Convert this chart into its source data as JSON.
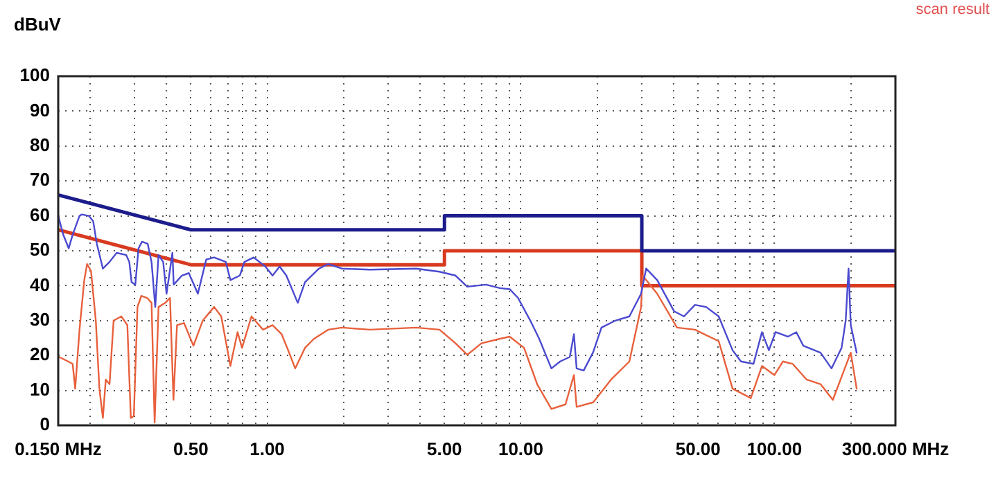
{
  "chart_data": {
    "type": "line",
    "ylabel": "dBuV",
    "annotations": [
      "scan result"
    ],
    "log": "x",
    "grid": true,
    "legend": false,
    "xlim": [
      0.15,
      300
    ],
    "ylim": [
      0,
      100
    ],
    "xticks": [
      {
        "value": 0.15,
        "label": "0.150 MHz"
      },
      {
        "value": 0.2,
        "label": null
      },
      {
        "value": 0.3,
        "label": null
      },
      {
        "value": 0.4,
        "label": null
      },
      {
        "value": 0.5,
        "label": "0.50"
      },
      {
        "value": 0.6,
        "label": null
      },
      {
        "value": 0.7,
        "label": null
      },
      {
        "value": 0.8,
        "label": null
      },
      {
        "value": 0.9,
        "label": null
      },
      {
        "value": 1,
        "label": "1.00"
      },
      {
        "value": 2,
        "label": null
      },
      {
        "value": 3,
        "label": null
      },
      {
        "value": 4,
        "label": null
      },
      {
        "value": 5,
        "label": "5.00"
      },
      {
        "value": 6,
        "label": null
      },
      {
        "value": 7,
        "label": null
      },
      {
        "value": 8,
        "label": null
      },
      {
        "value": 9,
        "label": null
      },
      {
        "value": 10,
        "label": "10.00"
      },
      {
        "value": 20,
        "label": null
      },
      {
        "value": 30,
        "label": null
      },
      {
        "value": 40,
        "label": null
      },
      {
        "value": 50,
        "label": "50.00"
      },
      {
        "value": 60,
        "label": null
      },
      {
        "value": 70,
        "label": null
      },
      {
        "value": 80,
        "label": null
      },
      {
        "value": 90,
        "label": null
      },
      {
        "value": 100,
        "label": "100.00"
      },
      {
        "value": 200,
        "label": null
      },
      {
        "value": 300,
        "label": "300.000 MHz"
      }
    ],
    "yticks": [
      0,
      10,
      20,
      30,
      40,
      50,
      60,
      70,
      80,
      90,
      100
    ],
    "series": [
      {
        "color": "#4a4ad0",
        "x": [
          0.15,
          0.157,
          0.165,
          0.171,
          0.182,
          0.186,
          0.198,
          0.206,
          0.213,
          0.225,
          0.239,
          0.255,
          0.278,
          0.286,
          0.292,
          0.302,
          0.311,
          0.321,
          0.338,
          0.35,
          0.362,
          0.373,
          0.389,
          0.401,
          0.423,
          0.428,
          0.461,
          0.491,
          0.533,
          0.575,
          0.618,
          0.687,
          0.716,
          0.78,
          0.813,
          0.885,
          0.984,
          1.05,
          1.12,
          1.19,
          1.32,
          1.41,
          1.6,
          1.74,
          1.97,
          2.54,
          3.87,
          4.78,
          5.53,
          6.15,
          7.29,
          8.27,
          9.04,
          9.75,
          10.9,
          11.8,
          13.2,
          14.3,
          15.6,
          16.2,
          16.6,
          17.7,
          19.3,
          20.8,
          23.6,
          26.8,
          29.8,
          31.2,
          34.5,
          40.2,
          44,
          48.6,
          53.8,
          60.3,
          68.4,
          73.8,
          82.7,
          89.3,
          95.1,
          101,
          113,
          122,
          130,
          152,
          168,
          184,
          191,
          196,
          200,
          211
        ],
        "values": [
          60,
          54.6,
          50.7,
          54.6,
          60,
          60.4,
          60,
          58.5,
          52,
          44.9,
          46.8,
          49.4,
          48.8,
          46.8,
          41,
          40.3,
          50.7,
          52.6,
          52,
          46.8,
          33.9,
          48.8,
          46.8,
          37.7,
          49.4,
          40.3,
          42.9,
          43.6,
          37.7,
          47.5,
          48.1,
          46.8,
          41.6,
          42.9,
          46.8,
          48.1,
          45.5,
          42.9,
          45.5,
          42.9,
          35.1,
          41,
          44.9,
          46.2,
          44.9,
          44.6,
          44.9,
          44,
          42.9,
          39.7,
          40.3,
          39.3,
          39,
          36.5,
          30,
          24.9,
          16.3,
          18.3,
          19.6,
          26.1,
          16.3,
          15.7,
          21,
          28,
          30,
          31.2,
          37.7,
          44.9,
          41.6,
          32.7,
          31.2,
          34.5,
          33.9,
          31.2,
          21.5,
          18.3,
          17.6,
          26.7,
          21.5,
          26.7,
          25.4,
          26.7,
          22.8,
          20.8,
          16.3,
          22.2,
          30,
          44.9,
          28.7,
          20.8
        ]
      },
      {
        "color": "#e8603c",
        "x": [
          0.151,
          0.164,
          0.171,
          0.175,
          0.182,
          0.19,
          0.195,
          0.202,
          0.211,
          0.218,
          0.225,
          0.231,
          0.239,
          0.248,
          0.266,
          0.281,
          0.29,
          0.298,
          0.308,
          0.319,
          0.336,
          0.35,
          0.36,
          0.373,
          0.397,
          0.414,
          0.427,
          0.441,
          0.47,
          0.512,
          0.557,
          0.618,
          0.659,
          0.716,
          0.764,
          0.796,
          0.867,
          0.963,
          1.05,
          1.14,
          1.21,
          1.29,
          1.41,
          1.53,
          1.74,
          1.97,
          2.54,
          3.87,
          4.78,
          5.53,
          6.15,
          6.99,
          8.27,
          9.04,
          10.3,
          11.6,
          13.2,
          15,
          16.2,
          16.6,
          19.3,
          22.7,
          26.8,
          29.8,
          30.2,
          34.5,
          41.3,
          48.6,
          60.3,
          68.4,
          80.7,
          89.3,
          100,
          108,
          118,
          134,
          152,
          170,
          188,
          200,
          211
        ],
        "values": [
          19.6,
          18.3,
          17.6,
          10.5,
          27.4,
          41.6,
          46.2,
          44.2,
          30,
          10.5,
          2.1,
          13.1,
          11.8,
          30,
          31.2,
          28.7,
          2.1,
          2.7,
          33.9,
          37.1,
          36.5,
          35.1,
          0.8,
          33.9,
          35.1,
          36.5,
          7.3,
          28.7,
          29.3,
          22.8,
          30,
          33.9,
          31.2,
          17,
          26.7,
          22.2,
          31.2,
          27.4,
          28.7,
          26.1,
          21.5,
          16.3,
          22.2,
          24.8,
          27.4,
          28,
          27.4,
          28,
          27.4,
          23.5,
          20.2,
          23.5,
          24.8,
          25.4,
          22.2,
          11.8,
          4.7,
          6,
          14.4,
          5.3,
          6.6,
          13.1,
          18.3,
          33.9,
          42.9,
          37.7,
          28,
          27.4,
          24.1,
          10.5,
          7.8,
          17,
          14.4,
          18.3,
          17.6,
          13.1,
          11.8,
          7.3,
          15.7,
          20.8,
          10.5
        ]
      },
      {
        "color": "#1c1c8c",
        "x": [
          0.15,
          0.5,
          5,
          5,
          30,
          30,
          300
        ],
        "values": [
          66,
          56,
          56,
          60,
          60,
          50,
          50
        ]
      },
      {
        "color": "#d83a20",
        "x": [
          0.15,
          0.5,
          5,
          5,
          30,
          30,
          300
        ],
        "values": [
          56,
          46,
          46,
          50,
          50,
          40,
          40
        ]
      }
    ]
  }
}
